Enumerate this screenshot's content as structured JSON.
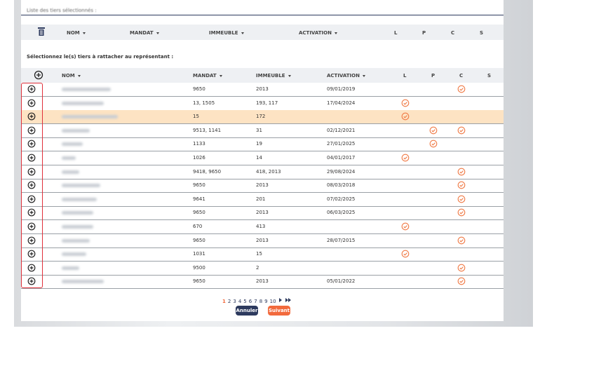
{
  "selected_section": {
    "title": "Liste des tiers sélectionnés :",
    "columns": [
      "NOM",
      "MANDAT",
      "IMMEUBLE",
      "ACTIVATION",
      "L",
      "P",
      "C",
      "S"
    ]
  },
  "available_section": {
    "title": "Sélectionnez le(s) tiers à rattacher au représentant :",
    "columns": [
      "NOM",
      "MANDAT",
      "IMMEUBLE",
      "ACTIVATION",
      "L",
      "P",
      "C",
      "S"
    ],
    "rows": [
      {
        "mandat": "9650",
        "immeuble": "2013",
        "activation": "09/01/2019",
        "l": false,
        "p": false,
        "c": true,
        "s": false
      },
      {
        "mandat": "13, 1505",
        "immeuble": "193, 117",
        "activation": "17/04/2024",
        "l": true,
        "p": false,
        "c": false,
        "s": false
      },
      {
        "mandat": "15",
        "immeuble": "172",
        "l": true,
        "p": false,
        "c": false,
        "s": false,
        "highlighted": true
      },
      {
        "mandat": "9513, 1141",
        "immeuble": "31",
        "activation": "02/12/2021",
        "l": false,
        "p": true,
        "c": true,
        "s": false
      },
      {
        "mandat": "1133",
        "immeuble": "19",
        "activation": "27/01/2025",
        "l": false,
        "p": true,
        "c": false,
        "s": false
      },
      {
        "mandat": "1026",
        "immeuble": "14",
        "activation": "04/01/2017",
        "l": true,
        "p": false,
        "c": false,
        "s": false
      },
      {
        "mandat": "9418, 9650",
        "immeuble": "418, 2013",
        "activation": "29/08/2024",
        "l": false,
        "p": false,
        "c": true,
        "s": false
      },
      {
        "mandat": "9650",
        "immeuble": "2013",
        "activation": "08/03/2018",
        "l": false,
        "p": false,
        "c": true,
        "s": false
      },
      {
        "mandat": "9641",
        "immeuble": "201",
        "activation": "07/02/2025",
        "l": false,
        "p": false,
        "c": true,
        "s": false
      },
      {
        "mandat": "9650",
        "immeuble": "2013",
        "activation": "06/03/2025",
        "l": false,
        "p": false,
        "c": true,
        "s": false
      },
      {
        "mandat": "670",
        "immeuble": "413",
        "l": true,
        "p": false,
        "c": false,
        "s": false
      },
      {
        "mandat": "9650",
        "immeuble": "2013",
        "activation": "28/07/2015",
        "l": false,
        "p": false,
        "c": true,
        "s": false
      },
      {
        "mandat": "1031",
        "immeuble": "15",
        "l": true,
        "p": false,
        "c": false,
        "s": false
      },
      {
        "mandat": "9500",
        "immeuble": "2",
        "l": false,
        "p": false,
        "c": true,
        "s": false
      },
      {
        "mandat": "9650",
        "immeuble": "2013",
        "activation": "05/01/2022",
        "l": false,
        "p": false,
        "c": true,
        "s": false
      }
    ]
  },
  "pagination": {
    "pages": [
      1,
      2,
      3,
      4,
      5,
      6,
      7,
      8,
      9,
      10
    ],
    "current": 1
  },
  "buttons": {
    "cancel": "Annuler",
    "next": "Suivant"
  }
}
